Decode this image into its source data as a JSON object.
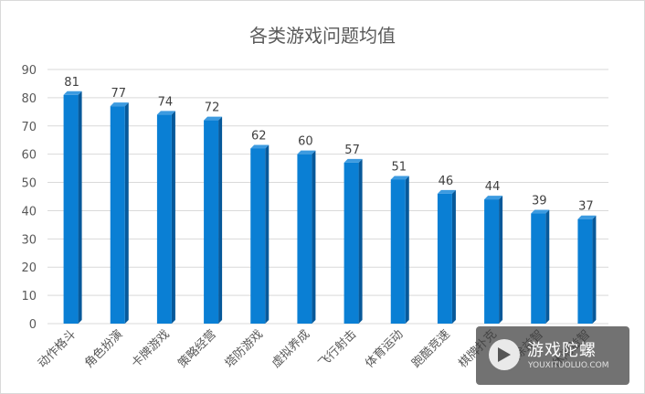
{
  "chart_data": {
    "type": "bar",
    "title": "各类游戏问题均值",
    "categories": [
      "动作格斗",
      "角色扮演",
      "卡牌游戏",
      "策略经营",
      "塔防游戏",
      "虚拟养成",
      "飞行射击",
      "体育运动",
      "跑酷竞速",
      "棋牌扑克",
      "消除益智",
      "休闲益智"
    ],
    "values": [
      81,
      77,
      74,
      72,
      62,
      60,
      57,
      51,
      46,
      44,
      39,
      37
    ],
    "ylim": [
      0,
      90
    ],
    "yticks": [
      0,
      10,
      20,
      30,
      40,
      50,
      60,
      70,
      80,
      90
    ],
    "grid": true,
    "colors": {
      "bar": "#0a7fd4",
      "bar_dark": "#07599a",
      "bar_top": "#3d9be0"
    }
  },
  "watermark": {
    "name": "游戏陀螺",
    "url": "YOUXITUOLUO.COM"
  }
}
